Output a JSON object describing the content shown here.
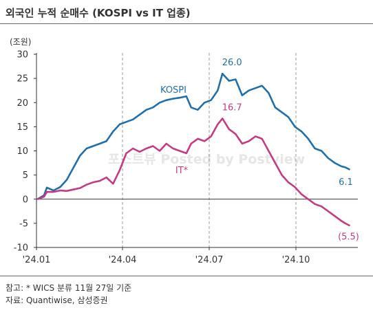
{
  "title": "외국인 누적 순매수 (KOSPI vs IT 업종)",
  "notes": [
    "참고: * WICS 분류 11월 27일 기준",
    "자료: Quantiwise, 삼성증권"
  ],
  "watermark": "포스트뷰 Posted by Postview",
  "chart_data": {
    "type": "line",
    "unit_label": "(조원)",
    "ylim": [
      -10,
      30
    ],
    "yticks": [
      -10,
      -5,
      0,
      5,
      10,
      15,
      20,
      25,
      30
    ],
    "xticks": [
      "'24.01",
      "'24.04",
      "'24.07",
      "'24.10"
    ],
    "xtick_dates": [
      "2024-01-01",
      "2024-04-01",
      "2024-07-01",
      "2024-10-01"
    ],
    "vertical_reference_lines_at": [
      "2024-04-01",
      "2024-07-01",
      "2024-10-01"
    ],
    "grid": false,
    "series": [
      {
        "name": "KOSPI",
        "color": "#1f6fad",
        "points": [
          [
            "2024-01-02",
            0.0
          ],
          [
            "2024-01-09",
            0.8
          ],
          [
            "2024-01-12",
            2.4
          ],
          [
            "2024-01-19",
            1.8
          ],
          [
            "2024-01-26",
            2.5
          ],
          [
            "2024-02-02",
            4.0
          ],
          [
            "2024-02-09",
            6.5
          ],
          [
            "2024-02-16",
            9.0
          ],
          [
            "2024-02-23",
            10.5
          ],
          [
            "2024-03-01",
            11.0
          ],
          [
            "2024-03-08",
            11.5
          ],
          [
            "2024-03-15",
            12.0
          ],
          [
            "2024-03-22",
            14.0
          ],
          [
            "2024-03-29",
            15.5
          ],
          [
            "2024-04-05",
            16.0
          ],
          [
            "2024-04-12",
            16.5
          ],
          [
            "2024-04-19",
            17.5
          ],
          [
            "2024-04-26",
            18.5
          ],
          [
            "2024-05-03",
            19.0
          ],
          [
            "2024-05-10",
            20.0
          ],
          [
            "2024-05-17",
            20.5
          ],
          [
            "2024-05-24",
            20.8
          ],
          [
            "2024-05-31",
            21.0
          ],
          [
            "2024-06-07",
            21.3
          ],
          [
            "2024-06-12",
            19.0
          ],
          [
            "2024-06-19",
            18.5
          ],
          [
            "2024-06-26",
            20.0
          ],
          [
            "2024-07-03",
            20.5
          ],
          [
            "2024-07-10",
            22.5
          ],
          [
            "2024-07-15",
            26.0
          ],
          [
            "2024-07-22",
            24.5
          ],
          [
            "2024-07-29",
            24.8
          ],
          [
            "2024-08-05",
            21.5
          ],
          [
            "2024-08-12",
            22.5
          ],
          [
            "2024-08-19",
            23.0
          ],
          [
            "2024-08-26",
            23.5
          ],
          [
            "2024-09-02",
            22.0
          ],
          [
            "2024-09-09",
            19.0
          ],
          [
            "2024-09-16",
            18.0
          ],
          [
            "2024-09-23",
            17.0
          ],
          [
            "2024-09-30",
            15.0
          ],
          [
            "2024-10-07",
            14.0
          ],
          [
            "2024-10-14",
            12.5
          ],
          [
            "2024-10-21",
            10.5
          ],
          [
            "2024-10-28",
            10.0
          ],
          [
            "2024-11-04",
            8.5
          ],
          [
            "2024-11-11",
            7.5
          ],
          [
            "2024-11-18",
            6.8
          ],
          [
            "2024-11-22",
            6.6
          ],
          [
            "2024-11-27",
            6.1
          ]
        ],
        "end_label": "6.1"
      },
      {
        "name": "IT*",
        "color": "#c63a85",
        "points": [
          [
            "2024-01-02",
            0.0
          ],
          [
            "2024-01-09",
            0.5
          ],
          [
            "2024-01-12",
            1.5
          ],
          [
            "2024-01-19",
            1.5
          ],
          [
            "2024-01-26",
            1.8
          ],
          [
            "2024-02-02",
            1.7
          ],
          [
            "2024-02-09",
            2.0
          ],
          [
            "2024-02-16",
            2.3
          ],
          [
            "2024-02-23",
            3.0
          ],
          [
            "2024-03-01",
            3.5
          ],
          [
            "2024-03-08",
            3.8
          ],
          [
            "2024-03-15",
            4.5
          ],
          [
            "2024-03-22",
            3.2
          ],
          [
            "2024-03-29",
            6.0
          ],
          [
            "2024-04-05",
            9.5
          ],
          [
            "2024-04-12",
            10.5
          ],
          [
            "2024-04-19",
            9.8
          ],
          [
            "2024-04-26",
            10.5
          ],
          [
            "2024-05-03",
            11.0
          ],
          [
            "2024-05-10",
            10.0
          ],
          [
            "2024-05-17",
            11.5
          ],
          [
            "2024-05-24",
            10.5
          ],
          [
            "2024-05-31",
            10.0
          ],
          [
            "2024-06-07",
            9.5
          ],
          [
            "2024-06-12",
            11.5
          ],
          [
            "2024-06-19",
            12.5
          ],
          [
            "2024-06-26",
            12.0
          ],
          [
            "2024-07-03",
            13.0
          ],
          [
            "2024-07-10",
            15.5
          ],
          [
            "2024-07-15",
            16.7
          ],
          [
            "2024-07-22",
            14.5
          ],
          [
            "2024-07-29",
            13.5
          ],
          [
            "2024-08-05",
            11.5
          ],
          [
            "2024-08-12",
            12.0
          ],
          [
            "2024-08-19",
            13.0
          ],
          [
            "2024-08-26",
            12.5
          ],
          [
            "2024-09-02",
            10.0
          ],
          [
            "2024-09-09",
            7.5
          ],
          [
            "2024-09-16",
            5.0
          ],
          [
            "2024-09-23",
            3.5
          ],
          [
            "2024-09-30",
            2.5
          ],
          [
            "2024-10-07",
            1.0
          ],
          [
            "2024-10-14",
            0.0
          ],
          [
            "2024-10-21",
            -1.0
          ],
          [
            "2024-10-28",
            -1.5
          ],
          [
            "2024-11-04",
            -2.5
          ],
          [
            "2024-11-11",
            -3.5
          ],
          [
            "2024-11-18",
            -4.5
          ],
          [
            "2024-11-22",
            -5.0
          ],
          [
            "2024-11-27",
            -5.5
          ]
        ],
        "end_label": "(5.5)"
      }
    ],
    "annotations": [
      {
        "text": "26.0",
        "series": "KOSPI",
        "at": "2024-07-15",
        "value": 26.0
      },
      {
        "text": "16.7",
        "series": "IT*",
        "at": "2024-07-15",
        "value": 16.7
      }
    ]
  }
}
